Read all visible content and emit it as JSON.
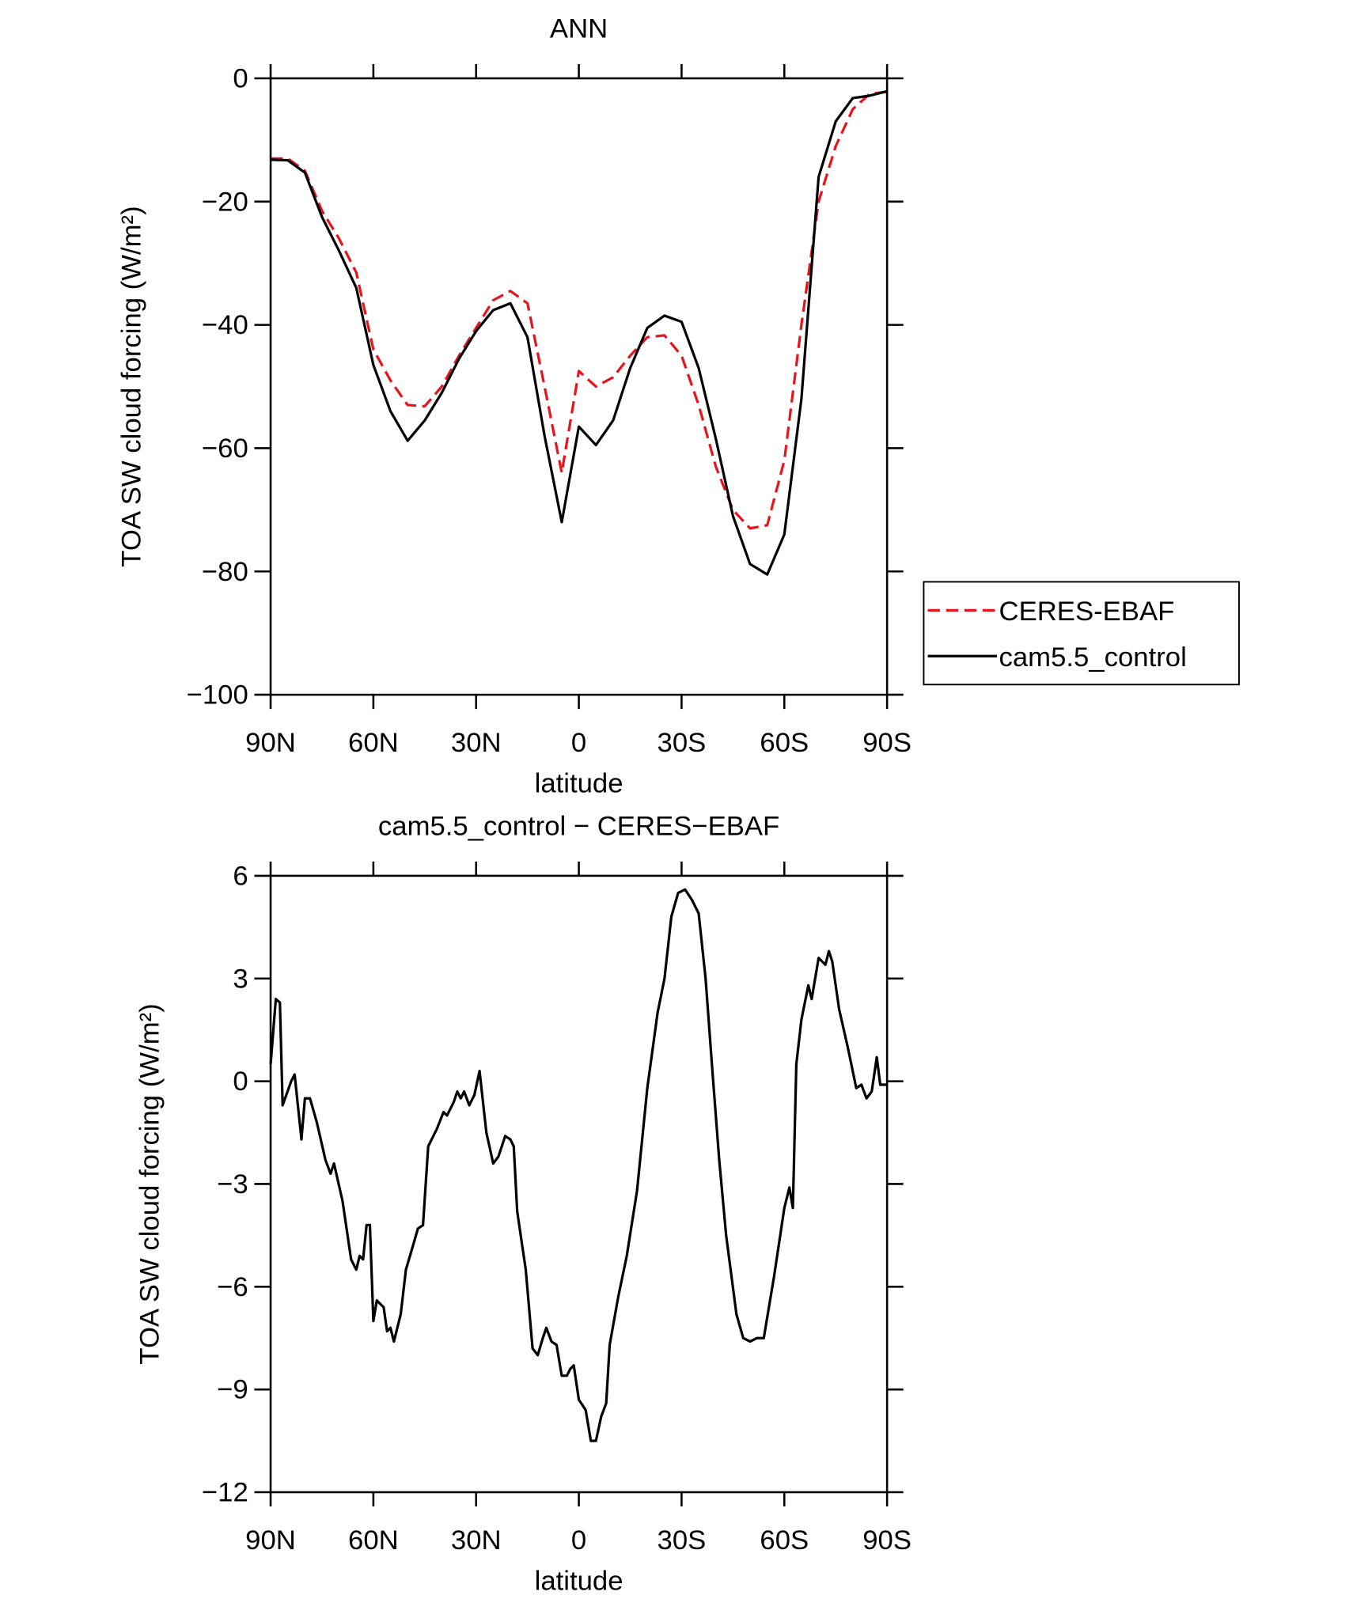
{
  "chart_data": [
    {
      "type": "line",
      "title": "ANN",
      "xlabel": "latitude",
      "ylabel": "TOA SW cloud forcing (W/m²)",
      "x": [
        90,
        85,
        80,
        75,
        70,
        65,
        60,
        55,
        50,
        45,
        40,
        35,
        30,
        25,
        20,
        15,
        10,
        5,
        0,
        -5,
        -10,
        -15,
        -20,
        -25,
        -30,
        -35,
        -40,
        -45,
        -50,
        -55,
        -60,
        -65,
        -70,
        -75,
        -80,
        -85,
        -90
      ],
      "series": [
        {
          "name": "CERES-EBAF",
          "color": "#e8141b",
          "style": "dashed",
          "values": [
            -13,
            -13,
            -15,
            -21.5,
            -26,
            -31.5,
            -44,
            -49,
            -53,
            -53.2,
            -50,
            -45,
            -40.5,
            -36,
            -34.5,
            -36.5,
            -50,
            -64,
            -47.5,
            -50,
            -48.5,
            -45,
            -42,
            -41.7,
            -45,
            -53,
            -63,
            -70,
            -73,
            -72.5,
            -62,
            -40,
            -20,
            -11,
            -5,
            -2.5,
            -2.2
          ]
        },
        {
          "name": "cam5.5_control",
          "color": "#000000",
          "style": "solid",
          "values": [
            -13.2,
            -13.3,
            -15.3,
            -22.5,
            -28,
            -34,
            -46.5,
            -54,
            -58.8,
            -55.5,
            -51,
            -45.5,
            -41,
            -37.6,
            -36.5,
            -42,
            -58,
            -72,
            -56.5,
            -59.5,
            -55.5,
            -47,
            -40.5,
            -38.5,
            -39.5,
            -47,
            -58.5,
            -71,
            -78.8,
            -80.5,
            -74,
            -52,
            -16,
            -7,
            -3.2,
            -2.8,
            -2.1
          ]
        }
      ],
      "xlim": [
        90,
        -90
      ],
      "xticks": [
        {
          "value": 90,
          "label": "90N"
        },
        {
          "value": 60,
          "label": "60N"
        },
        {
          "value": 30,
          "label": "30N"
        },
        0,
        {
          "value": -30,
          "label": "30S"
        },
        {
          "value": -60,
          "label": "60S"
        },
        {
          "value": -90,
          "label": "90S"
        }
      ],
      "ylim": [
        -100,
        0
      ],
      "yticks": [
        0,
        {
          "value": -20,
          "label": "−20"
        },
        {
          "value": -40,
          "label": "−40"
        },
        {
          "value": -60,
          "label": "−60"
        },
        {
          "value": -80,
          "label": "−80"
        },
        {
          "value": -100,
          "label": "−100"
        }
      ],
      "legend": "right"
    },
    {
      "type": "line",
      "title": "cam5.5_control − CERES−EBAF",
      "xlabel": "latitude",
      "ylabel": "TOA SW cloud forcing (W/m²)",
      "x": [
        90,
        88.5,
        87.3,
        86.5,
        84,
        83,
        81,
        80,
        78.5,
        76.5,
        74,
        72.5,
        71.5,
        69,
        66.5,
        65,
        64,
        63,
        62,
        61,
        60,
        59,
        57,
        56,
        55,
        54,
        52,
        50.5,
        49,
        47,
        45.5,
        44,
        41.5,
        39.5,
        38.5,
        36.5,
        35.5,
        34.5,
        33.5,
        32,
        30.5,
        29,
        27,
        25,
        23.5,
        21.5,
        20,
        19,
        18,
        15.5,
        13.5,
        12,
        10.5,
        9.5,
        8,
        6.5,
        5,
        3.5,
        2.5,
        1.5,
        0,
        -2,
        -3.5,
        -5,
        -6.5,
        -8,
        -9,
        -11.5,
        -14,
        -17,
        -20,
        -23,
        -25,
        -27,
        -29,
        -31,
        -33,
        -35,
        -37,
        -39,
        -41,
        -43,
        -46,
        -48,
        -50,
        -52,
        -54,
        -57,
        -60,
        -61.5,
        -62.5,
        -63.5,
        -65,
        -67,
        -68,
        -70,
        -72,
        -73,
        -74,
        -76,
        -78.5,
        -81,
        -82.5,
        -84,
        -85.5,
        -87,
        -88,
        -90
      ],
      "values": [
        0.5,
        2.4,
        2.3,
        -0.7,
        0,
        0.2,
        -1.7,
        -0.5,
        -0.5,
        -1.2,
        -2.3,
        -2.7,
        -2.4,
        -3.5,
        -5.2,
        -5.5,
        -5.1,
        -5.2,
        -4.2,
        -4.2,
        -7,
        -6.4,
        -6.6,
        -7.3,
        -7.2,
        -7.6,
        -6.8,
        -5.5,
        -5,
        -4.3,
        -4.2,
        -1.9,
        -1.4,
        -0.9,
        -1.0,
        -0.6,
        -0.3,
        -0.5,
        -0.3,
        -0.7,
        -0.4,
        0.3,
        -1.5,
        -2.4,
        -2.2,
        -1.6,
        -1.7,
        -1.9,
        -3.8,
        -5.5,
        -7.8,
        -8,
        -7.5,
        -7.2,
        -7.6,
        -7.7,
        -8.6,
        -8.6,
        -8.4,
        -8.3,
        -9.3,
        -9.6,
        -10.5,
        -10.5,
        -9.8,
        -9.4,
        -7.7,
        -6.3,
        -5.1,
        -3.2,
        -0.2,
        2.0,
        3.0,
        4.8,
        5.5,
        5.6,
        5.3,
        4.9,
        3.0,
        0.3,
        -2.3,
        -4.5,
        -6.8,
        -7.5,
        -7.6,
        -7.5,
        -7.5,
        -5.7,
        -3.7,
        -3.1,
        -3.7,
        0.5,
        1.8,
        2.8,
        2.4,
        3.6,
        3.4,
        3.8,
        3.5,
        2.1,
        1.0,
        -0.2,
        -0.1,
        -0.5,
        -0.3,
        0.7,
        -0.1,
        -0.1
      ],
      "color": "#000000",
      "xlim": [
        90,
        -90
      ],
      "xticks": [
        {
          "value": 90,
          "label": "90N"
        },
        {
          "value": 60,
          "label": "60N"
        },
        {
          "value": 30,
          "label": "30N"
        },
        0,
        {
          "value": -30,
          "label": "30S"
        },
        {
          "value": -60,
          "label": "60S"
        },
        {
          "value": -90,
          "label": "90S"
        }
      ],
      "ylim": [
        -12,
        6
      ],
      "yticks": [
        6,
        3,
        0,
        {
          "value": -3,
          "label": "−3"
        },
        {
          "value": -6,
          "label": "−6"
        },
        {
          "value": -9,
          "label": "−9"
        },
        {
          "value": -12,
          "label": "−12"
        }
      ]
    }
  ]
}
